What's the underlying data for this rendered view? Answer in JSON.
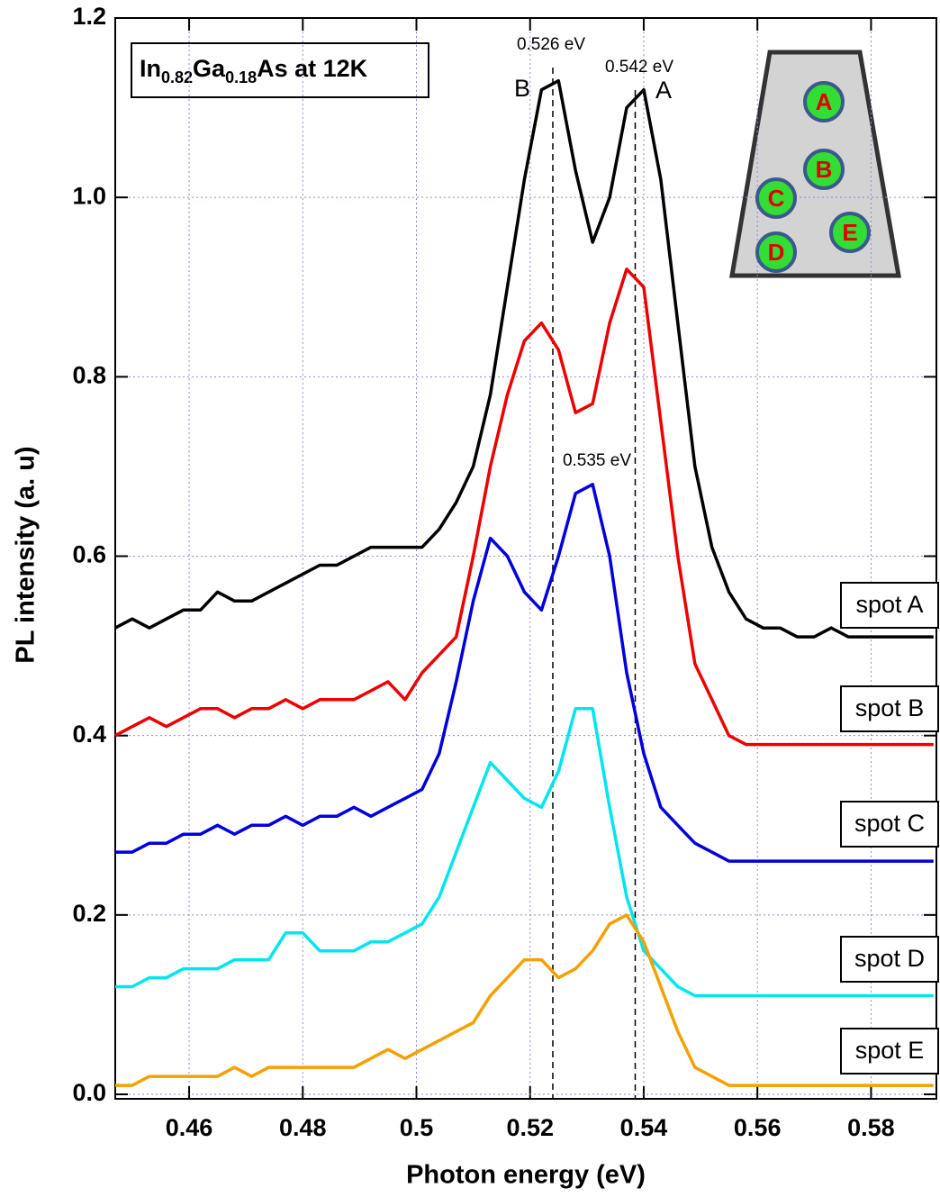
{
  "chart_data": {
    "type": "line",
    "title": [
      "In",
      "0.82",
      "Ga",
      "0.18",
      "As at 12K"
    ],
    "x_label": "Photon energy (eV)",
    "y_label": "PL intensity (a. u)",
    "x": [
      0.447,
      0.45,
      0.453,
      0.456,
      0.459,
      0.462,
      0.465,
      0.468,
      0.471,
      0.474,
      0.477,
      0.48,
      0.483,
      0.486,
      0.489,
      0.492,
      0.495,
      0.498,
      0.501,
      0.504,
      0.507,
      0.51,
      0.513,
      0.516,
      0.519,
      0.522,
      0.525,
      0.528,
      0.531,
      0.534,
      0.537,
      0.54,
      0.543,
      0.546,
      0.549,
      0.552,
      0.555,
      0.558,
      0.561,
      0.564,
      0.567,
      0.57,
      0.573,
      0.576,
      0.579,
      0.582,
      0.585,
      0.588,
      0.591
    ],
    "series": [
      {
        "name": "spot A",
        "color": "#000000",
        "values": [
          0.52,
          0.53,
          0.52,
          0.53,
          0.54,
          0.54,
          0.56,
          0.55,
          0.55,
          0.56,
          0.57,
          0.58,
          0.59,
          0.59,
          0.6,
          0.61,
          0.61,
          0.61,
          0.61,
          0.63,
          0.66,
          0.7,
          0.78,
          0.9,
          1.02,
          1.12,
          1.13,
          1.03,
          0.95,
          1.0,
          1.1,
          1.12,
          1.02,
          0.86,
          0.7,
          0.61,
          0.56,
          0.53,
          0.52,
          0.52,
          0.51,
          0.51,
          0.52,
          0.51,
          0.51,
          0.51,
          0.51,
          0.51,
          0.51
        ]
      },
      {
        "name": "spot B",
        "color": "#ee0000",
        "values": [
          0.4,
          0.41,
          0.42,
          0.41,
          0.42,
          0.43,
          0.43,
          0.42,
          0.43,
          0.43,
          0.44,
          0.43,
          0.44,
          0.44,
          0.44,
          0.45,
          0.46,
          0.44,
          0.47,
          0.49,
          0.51,
          0.6,
          0.7,
          0.78,
          0.84,
          0.86,
          0.83,
          0.76,
          0.77,
          0.86,
          0.92,
          0.9,
          0.75,
          0.6,
          0.48,
          0.44,
          0.4,
          0.39,
          0.39,
          0.39,
          0.39,
          0.39,
          0.39,
          0.39,
          0.39,
          0.39,
          0.39,
          0.39,
          0.39
        ]
      },
      {
        "name": "spot C",
        "color": "#0000dd",
        "values": [
          0.27,
          0.27,
          0.28,
          0.28,
          0.29,
          0.29,
          0.3,
          0.29,
          0.3,
          0.3,
          0.31,
          0.3,
          0.31,
          0.31,
          0.32,
          0.31,
          0.32,
          0.33,
          0.34,
          0.38,
          0.46,
          0.55,
          0.62,
          0.6,
          0.56,
          0.54,
          0.6,
          0.67,
          0.68,
          0.6,
          0.47,
          0.38,
          0.32,
          0.3,
          0.28,
          0.27,
          0.26,
          0.26,
          0.26,
          0.26,
          0.26,
          0.26,
          0.26,
          0.26,
          0.26,
          0.26,
          0.26,
          0.26,
          0.26
        ]
      },
      {
        "name": "spot D",
        "color": "#00e5ee",
        "values": [
          0.12,
          0.12,
          0.13,
          0.13,
          0.14,
          0.14,
          0.14,
          0.15,
          0.15,
          0.15,
          0.18,
          0.18,
          0.16,
          0.16,
          0.16,
          0.17,
          0.17,
          0.18,
          0.19,
          0.22,
          0.27,
          0.32,
          0.37,
          0.35,
          0.33,
          0.32,
          0.36,
          0.43,
          0.43,
          0.32,
          0.22,
          0.16,
          0.14,
          0.12,
          0.11,
          0.11,
          0.11,
          0.11,
          0.11,
          0.11,
          0.11,
          0.11,
          0.11,
          0.11,
          0.11,
          0.11,
          0.11,
          0.11,
          0.11
        ]
      },
      {
        "name": "spot E",
        "color": "#f5a000",
        "values": [
          0.01,
          0.01,
          0.02,
          0.02,
          0.02,
          0.02,
          0.02,
          0.03,
          0.02,
          0.03,
          0.03,
          0.03,
          0.03,
          0.03,
          0.03,
          0.04,
          0.05,
          0.04,
          0.05,
          0.06,
          0.07,
          0.08,
          0.11,
          0.13,
          0.15,
          0.15,
          0.13,
          0.14,
          0.16,
          0.19,
          0.2,
          0.17,
          0.12,
          0.07,
          0.03,
          0.02,
          0.01,
          0.01,
          0.01,
          0.01,
          0.01,
          0.01,
          0.01,
          0.01,
          0.01,
          0.01,
          0.01,
          0.01,
          0.01
        ]
      }
    ],
    "vlines": [
      0.524,
      0.5385
    ],
    "annotations": [
      "0.526 eV",
      "0.542 eV",
      "0.535 eV",
      "B",
      "A"
    ],
    "inset_labels": [
      "A",
      "B",
      "C",
      "D",
      "E"
    ],
    "xlim": [
      0.447,
      0.5915
    ],
    "ylim": [
      -0.005,
      1.2
    ],
    "xticks": [
      0.46,
      0.48,
      0.5,
      0.52,
      0.54,
      0.56,
      0.58
    ],
    "yticks": [
      {
        "value": 0,
        "label": "0.0"
      },
      0.2,
      0.4,
      0.6,
      0.8,
      {
        "value": 1,
        "label": "1.0"
      },
      1.2
    ],
    "grid": true
  }
}
